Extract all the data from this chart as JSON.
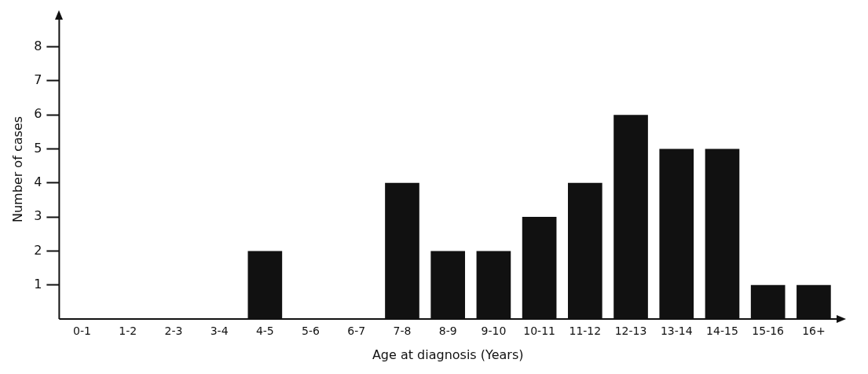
{
  "chart_data": {
    "type": "bar",
    "xlabel": "Age at diagnosis (Years)",
    "ylabel": "Number of cases",
    "categories": [
      "0-1",
      "1-2",
      "2-3",
      "3-4",
      "4-5",
      "5-6",
      "6-7",
      "7-8",
      "8-9",
      "9-10",
      "10-11",
      "11-12",
      "12-13",
      "13-14",
      "14-15",
      "15-16",
      "16+"
    ],
    "values": [
      0,
      0,
      0,
      0,
      2,
      0,
      0,
      4,
      2,
      2,
      3,
      4,
      6,
      5,
      5,
      1,
      1
    ],
    "color": "#111111",
    "ylim": [
      0,
      8.8
    ],
    "yticks": [
      1,
      2,
      3,
      4,
      5,
      6,
      7,
      8
    ],
    "grid": false,
    "legend": false
  }
}
